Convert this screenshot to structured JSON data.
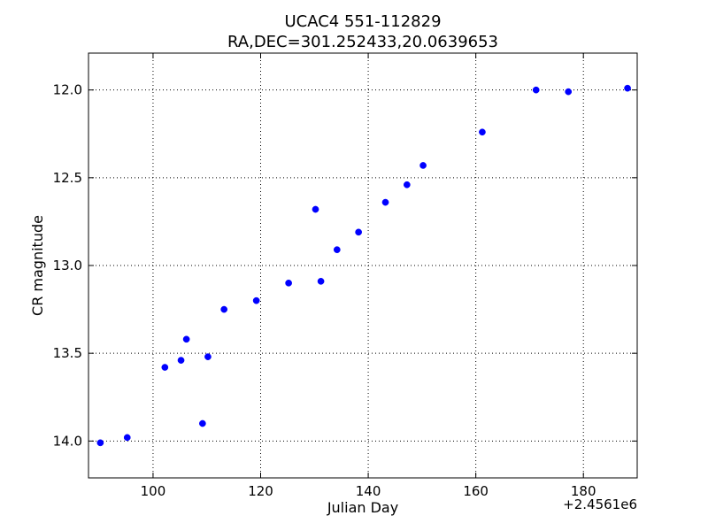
{
  "chart_data": {
    "type": "scatter",
    "title_line1": "UCAC4 551-112829",
    "title_line2": "RA,DEC=301.252433,20.0639653",
    "xlabel": "Julian Day",
    "ylabel": "CR magnitude",
    "x_offset_label": "+2.4561e6",
    "xlim": [
      88,
      190
    ],
    "ylim": [
      14.21,
      11.79
    ],
    "y_inverted": true,
    "grid": true,
    "marker_color": "#0000ff",
    "x_ticks": [
      100,
      120,
      140,
      160,
      180
    ],
    "x_tick_labels": [
      "100",
      "120",
      "140",
      "160",
      "180"
    ],
    "y_ticks": [
      12.0,
      12.5,
      13.0,
      13.5,
      14.0
    ],
    "y_tick_labels": [
      "12.0",
      "12.5",
      "13.0",
      "13.5",
      "14.0"
    ],
    "x": [
      90.2,
      95.2,
      102.2,
      105.2,
      106.2,
      109.2,
      110.2,
      113.2,
      119.2,
      125.2,
      130.2,
      131.2,
      134.2,
      138.2,
      143.2,
      147.2,
      150.2,
      161.2,
      171.2,
      177.2,
      188.2
    ],
    "y": [
      14.01,
      13.98,
      13.58,
      13.54,
      13.42,
      13.9,
      13.52,
      13.25,
      13.2,
      13.1,
      12.68,
      13.09,
      12.91,
      12.81,
      12.64,
      12.54,
      12.43,
      12.24,
      12.0,
      12.01,
      11.99
    ]
  }
}
